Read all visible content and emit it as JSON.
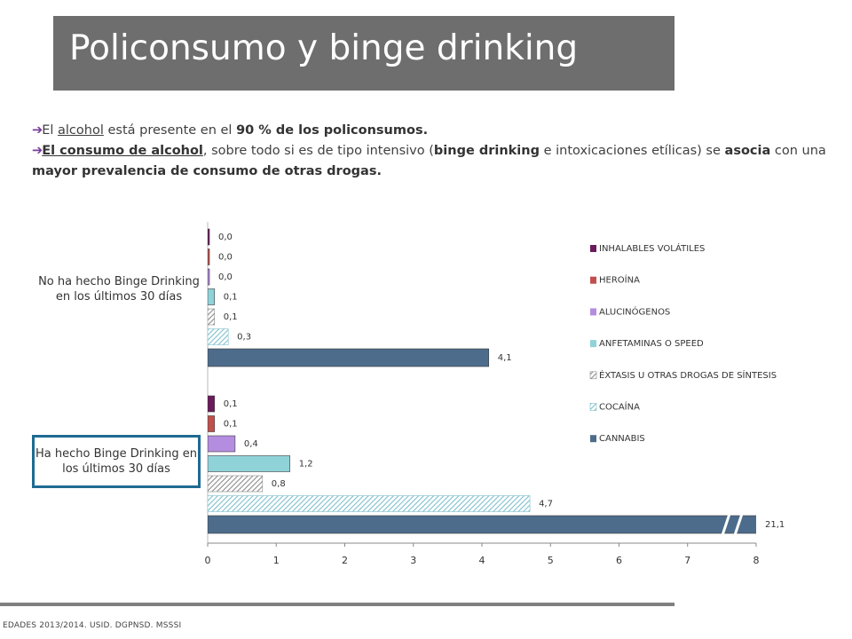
{
  "header": {
    "title": "Policonsumo y binge drinking"
  },
  "bullets": [
    [
      {
        "text": "El "
      },
      {
        "text": "alcohol",
        "underline": true
      },
      {
        "text": " está presente en el "
      },
      {
        "text": "90 % de los policonsumos.",
        "bold": true
      }
    ],
    [
      {
        "text": "El consumo de alcohol",
        "bold": true,
        "underline": true
      },
      {
        "text": ", sobre todo si es de tipo intensivo ("
      },
      {
        "text": "binge drinking",
        "bold": true
      },
      {
        "text": " e intoxicaciones etílicas) se "
      },
      {
        "text": "asocia",
        "bold": true
      },
      {
        "text": " con una "
      },
      {
        "text": "mayor prevalencia de consumo de otras drogas.",
        "bold": true
      }
    ]
  ],
  "chart_data": {
    "type": "hbar",
    "categories": [
      "No ha hecho Binge Drinking en los últimos 30 días",
      "Ha hecho Binge Drinking en los últimos 30 días"
    ],
    "series": [
      {
        "name": "INHALABLES VOLÁTILES",
        "color": "#6b1b5c",
        "values": [
          0.0,
          0.1
        ],
        "value_labels": [
          "0,0",
          "0,1"
        ]
      },
      {
        "name": "HEROÍNA",
        "color": "#c0504d",
        "values": [
          0.0,
          0.1
        ],
        "value_labels": [
          "0,0",
          "0,1"
        ]
      },
      {
        "name": "ALUCINÓGENOS",
        "color": "#b48de0",
        "values": [
          0.0,
          0.4
        ],
        "value_labels": [
          "0,0",
          "0,4"
        ]
      },
      {
        "name": "ANFETAMINAS O SPEED",
        "color": "#8fd3d9",
        "values": [
          0.1,
          1.2
        ],
        "value_labels": [
          "0,1",
          "1,2"
        ]
      },
      {
        "name": "ÉXTASIS U OTRAS DROGAS DE SÍNTESIS",
        "color": "#8c8c8c",
        "hatch": true,
        "values": [
          0.1,
          0.8
        ],
        "value_labels": [
          "0,1",
          "0,8"
        ]
      },
      {
        "name": "COCAÍNA",
        "color": "#7fbfcc",
        "hatch": true,
        "values": [
          0.3,
          4.7
        ],
        "value_labels": [
          "0,3",
          "4,7"
        ]
      },
      {
        "name": "CANNABIS",
        "color": "#4d6c8c",
        "values": [
          4.1,
          21.1
        ],
        "value_labels": [
          "4,1",
          "21,1"
        ]
      }
    ],
    "xlim": [
      0,
      8
    ],
    "xticks": [
      0,
      1,
      2,
      3,
      4,
      5,
      6,
      7,
      8
    ],
    "legend": "right"
  },
  "footer": {
    "source": "EDADES 2013/2014. USID. DGPNSD. MSSSI"
  }
}
